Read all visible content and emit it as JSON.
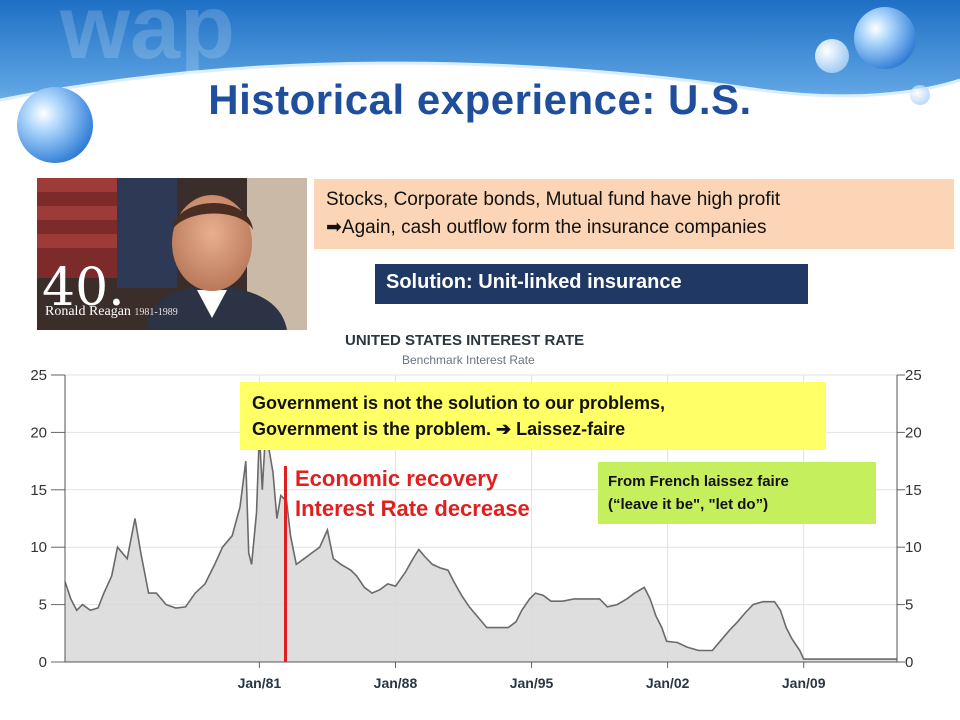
{
  "slide": {
    "title": "Historical experience: U.S."
  },
  "portrait": {
    "number": "40.",
    "name": "Ronald Reagan",
    "years": "1981-1989"
  },
  "notes": {
    "line1": "Stocks, Corporate bonds, Mutual fund have high profit",
    "line2_arrow": "➡",
    "line2": "Again, cash outflow form the insurance companies",
    "solution": "Solution: Unit-linked insurance",
    "quote_line1": "Government is not the solution to our problems,",
    "quote_line2": "Government is the problem.  ➔ Laissez-faire",
    "recovery_line1": "Economic recovery",
    "recovery_line2": "Interest Rate decrease",
    "french_line1": "From French laissez faire",
    "french_line2": "(“leave it be\",  \"let do”)"
  },
  "colors": {
    "title": "#1f4e9c",
    "solution_bg": "#1f3864",
    "quote_bg": "#ffff66",
    "french_bg": "#c6ef5e",
    "note_bg": "#fbd5b5",
    "recovery": "#e02020"
  },
  "chart_data": {
    "type": "area",
    "title": "UNITED STATES INTEREST RATE",
    "subtitle": "Benchmark Interest Rate",
    "xlabel": "",
    "ylabel": "",
    "ylim": [
      0,
      25
    ],
    "yticks": [
      0,
      5,
      10,
      15,
      20,
      25
    ],
    "xticks": [
      "Jan/81",
      "Jan/88",
      "Jan/95",
      "Jan/02",
      "Jan/09"
    ],
    "xtick_years": [
      1981,
      1988,
      1995,
      2002,
      2009
    ],
    "xlim": [
      1971,
      2013.8
    ],
    "grid": true,
    "series": [
      {
        "values": [
          [
            1971.0,
            7.0
          ],
          [
            1971.3,
            5.5
          ],
          [
            1971.6,
            4.5
          ],
          [
            1971.9,
            5.0
          ],
          [
            1972.3,
            4.5
          ],
          [
            1972.7,
            4.7
          ],
          [
            1973.0,
            6.0
          ],
          [
            1973.4,
            7.5
          ],
          [
            1973.7,
            10.0
          ],
          [
            1974.2,
            9.0
          ],
          [
            1974.6,
            12.5
          ],
          [
            1974.9,
            9.5
          ],
          [
            1975.3,
            6.0
          ],
          [
            1975.7,
            6.0
          ],
          [
            1976.2,
            5.0
          ],
          [
            1976.7,
            4.7
          ],
          [
            1977.2,
            4.8
          ],
          [
            1977.7,
            6.0
          ],
          [
            1978.2,
            6.8
          ],
          [
            1978.7,
            8.5
          ],
          [
            1979.1,
            10.0
          ],
          [
            1979.6,
            11.0
          ],
          [
            1980.0,
            13.5
          ],
          [
            1980.3,
            17.5
          ],
          [
            1980.45,
            9.5
          ],
          [
            1980.6,
            8.5
          ],
          [
            1980.85,
            13.0
          ],
          [
            1981.0,
            20.0
          ],
          [
            1981.15,
            15.0
          ],
          [
            1981.3,
            19.5
          ],
          [
            1981.45,
            19.0
          ],
          [
            1981.7,
            16.5
          ],
          [
            1981.9,
            12.5
          ],
          [
            1982.1,
            14.5
          ],
          [
            1982.4,
            14.0
          ],
          [
            1982.6,
            11.0
          ],
          [
            1982.9,
            8.5
          ],
          [
            1983.3,
            9.0
          ],
          [
            1983.7,
            9.5
          ],
          [
            1984.1,
            10.0
          ],
          [
            1984.5,
            11.5
          ],
          [
            1984.8,
            9.0
          ],
          [
            1985.2,
            8.5
          ],
          [
            1985.7,
            8.0
          ],
          [
            1986.0,
            7.5
          ],
          [
            1986.4,
            6.5
          ],
          [
            1986.8,
            6.0
          ],
          [
            1987.2,
            6.3
          ],
          [
            1987.6,
            6.8
          ],
          [
            1988.0,
            6.6
          ],
          [
            1988.5,
            7.8
          ],
          [
            1988.9,
            9.0
          ],
          [
            1989.2,
            9.8
          ],
          [
            1989.5,
            9.2
          ],
          [
            1989.9,
            8.5
          ],
          [
            1990.3,
            8.2
          ],
          [
            1990.7,
            8.0
          ],
          [
            1991.0,
            7.0
          ],
          [
            1991.4,
            5.8
          ],
          [
            1991.8,
            4.8
          ],
          [
            1992.2,
            4.0
          ],
          [
            1992.7,
            3.0
          ],
          [
            1993.2,
            3.0
          ],
          [
            1993.8,
            3.0
          ],
          [
            1994.2,
            3.5
          ],
          [
            1994.5,
            4.5
          ],
          [
            1994.9,
            5.5
          ],
          [
            1995.2,
            6.0
          ],
          [
            1995.6,
            5.8
          ],
          [
            1996.0,
            5.3
          ],
          [
            1996.6,
            5.3
          ],
          [
            1997.2,
            5.5
          ],
          [
            1997.8,
            5.5
          ],
          [
            1998.5,
            5.5
          ],
          [
            1998.9,
            4.8
          ],
          [
            1999.4,
            5.0
          ],
          [
            1999.9,
            5.5
          ],
          [
            2000.3,
            6.0
          ],
          [
            2000.8,
            6.5
          ],
          [
            2001.1,
            5.5
          ],
          [
            2001.4,
            4.0
          ],
          [
            2001.7,
            3.0
          ],
          [
            2001.95,
            1.8
          ],
          [
            2002.5,
            1.7
          ],
          [
            2003.0,
            1.3
          ],
          [
            2003.6,
            1.0
          ],
          [
            2004.3,
            1.0
          ],
          [
            2004.7,
            1.8
          ],
          [
            2005.2,
            2.8
          ],
          [
            2005.6,
            3.5
          ],
          [
            2006.0,
            4.3
          ],
          [
            2006.4,
            5.0
          ],
          [
            2006.9,
            5.25
          ],
          [
            2007.5,
            5.25
          ],
          [
            2007.8,
            4.5
          ],
          [
            2008.1,
            3.0
          ],
          [
            2008.4,
            2.0
          ],
          [
            2008.8,
            1.0
          ],
          [
            2009.0,
            0.25
          ],
          [
            2011.0,
            0.25
          ],
          [
            2013.8,
            0.25
          ]
        ]
      }
    ]
  }
}
